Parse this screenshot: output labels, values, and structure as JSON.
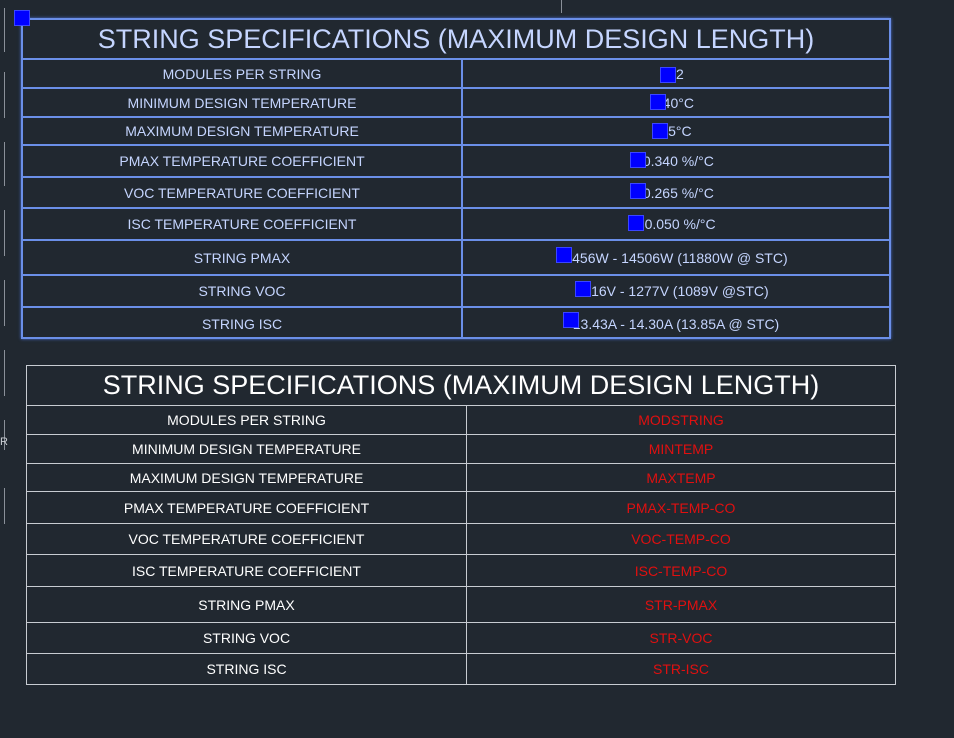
{
  "colors": {
    "background": "#212830",
    "selected_text": "#c5d5ff",
    "selection_border": "#6b8fe8",
    "grip": "#0000ff",
    "template_text": "#ffffff",
    "field_text": "#e01010",
    "grid_line": "#c8ccd2"
  },
  "edge_glyph": "R",
  "selected_table": {
    "title": "STRING SPECIFICATIONS (MAXIMUM DESIGN LENGTH)",
    "rows": [
      {
        "label": "MODULES PER STRING",
        "value": "12"
      },
      {
        "label": "MINIMUM DESIGN TEMPERATURE",
        "value": "-40°C"
      },
      {
        "label": "MAXIMUM DESIGN TEMPERATURE",
        "value": "45°C"
      },
      {
        "label": "PMAX TEMPERATURE COEFFICIENT",
        "value": "-0.340 %/°C"
      },
      {
        "label": "VOC TEMPERATURE COEFFICIENT",
        "value": "-0.265 %/°C"
      },
      {
        "label": "ISC TEMPERATURE COEFFICIENT",
        "value": "+0.050 %/°C"
      },
      {
        "label": "STRING PMAX",
        "value": "9456W - 14506W (11880W @ STC)"
      },
      {
        "label": "STRING VOC",
        "value": "916V - 1277V (1089V @STC)"
      },
      {
        "label": "STRING ISC",
        "value": "13.43A - 14.30A (13.85A @ STC)"
      }
    ]
  },
  "template_table": {
    "title": "STRING SPECIFICATIONS (MAXIMUM DESIGN LENGTH)",
    "rows": [
      {
        "label": "MODULES PER STRING",
        "field": "MODSTRING"
      },
      {
        "label": "MINIMUM DESIGN TEMPERATURE",
        "field": "MINTEMP"
      },
      {
        "label": "MAXIMUM DESIGN TEMPERATURE",
        "field": "MAXTEMP"
      },
      {
        "label": "PMAX TEMPERATURE COEFFICIENT",
        "field": "PMAX-TEMP-CO"
      },
      {
        "label": "VOC TEMPERATURE COEFFICIENT",
        "field": "VOC-TEMP-CO"
      },
      {
        "label": "ISC TEMPERATURE COEFFICIENT",
        "field": "ISC-TEMP-CO"
      },
      {
        "label": "STRING PMAX",
        "field": "STR-PMAX"
      },
      {
        "label": "STRING VOC",
        "field": "STR-VOC"
      },
      {
        "label": "STRING ISC",
        "field": "STR-ISC"
      }
    ]
  }
}
